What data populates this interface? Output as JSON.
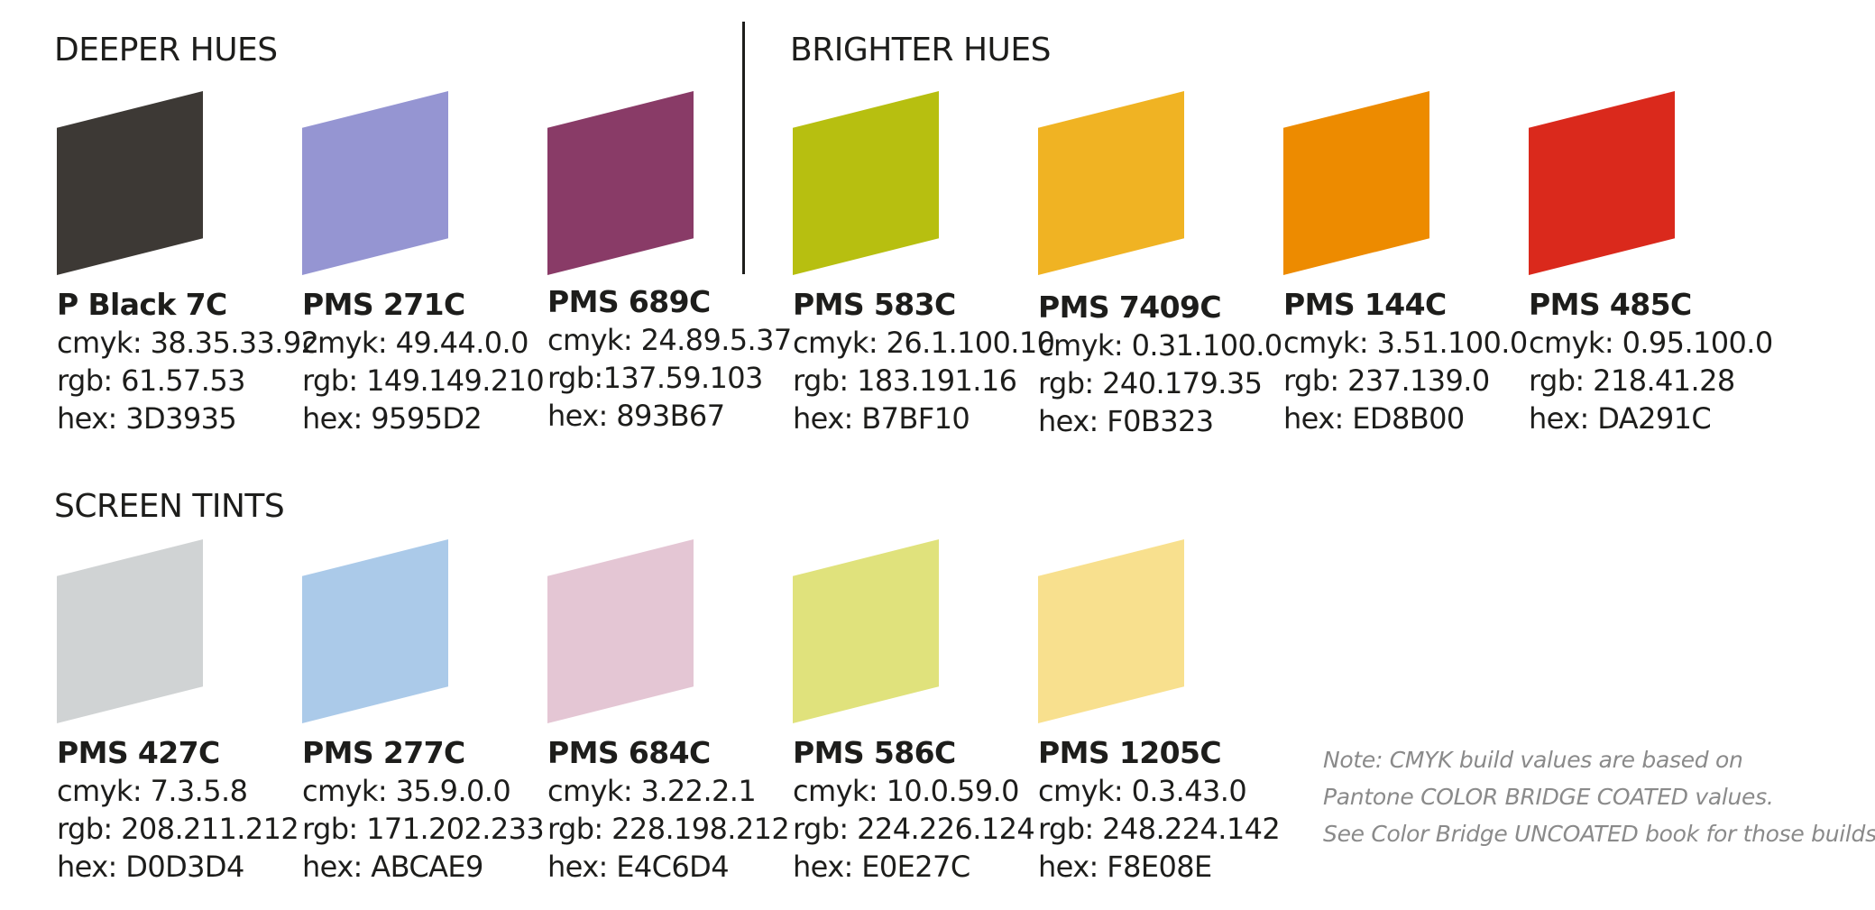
{
  "sections": {
    "deeper": "DEEPER HUES",
    "brighter": "BRIGHTER HUES",
    "tints": "SCREEN TINTS"
  },
  "swatches": [
    {
      "name": "P Black 7C",
      "cmyk": "cmyk: 38.35.33.92",
      "rgb": "rgb: 61.57.53",
      "hex": "hex: 3D3935",
      "color": "#3D3935"
    },
    {
      "name": "PMS 271C",
      "cmyk": "cmyk: 49.44.0.0",
      "rgb": "rgb: 149.149.210",
      "hex": "hex: 9595D2",
      "color": "#9595D2"
    },
    {
      "name": "PMS 689C",
      "cmyk": "cmyk: 24.89.5.37",
      "rgb": "rgb:137.59.103",
      "hex": "hex: 893B67",
      "color": "#893B67"
    },
    {
      "name": "PMS 583C",
      "cmyk": "cmyk: 26.1.100.10",
      "rgb": "rgb: 183.191.16",
      "hex": "hex: B7BF10",
      "color": "#B7BF10"
    },
    {
      "name": "PMS 7409C",
      "cmyk": "cmyk: 0.31.100.0",
      "rgb": "rgb: 240.179.35",
      "hex": "hex: F0B323",
      "color": "#F0B323"
    },
    {
      "name": "PMS 144C",
      "cmyk": "cmyk: 3.51.100.0",
      "rgb": "rgb: 237.139.0",
      "hex": "hex: ED8B00",
      "color": "#ED8B00"
    },
    {
      "name": "PMS 485C",
      "cmyk": "cmyk: 0.95.100.0",
      "rgb": "rgb: 218.41.28",
      "hex": "hex: DA291C",
      "color": "#DA291C"
    },
    {
      "name": "PMS 427C",
      "cmyk": "cmyk: 7.3.5.8",
      "rgb": "rgb: 208.211.212",
      "hex": "hex: D0D3D4",
      "color": "#D0D3D4"
    },
    {
      "name": "PMS 277C",
      "cmyk": "cmyk: 35.9.0.0",
      "rgb": "rgb: 171.202.233",
      "hex": "hex: ABCAE9",
      "color": "#ABCAE9"
    },
    {
      "name": "PMS 684C",
      "cmyk": "cmyk: 3.22.2.1",
      "rgb": "rgb: 228.198.212",
      "hex": "hex: E4C6D4",
      "color": "#E4C6D4"
    },
    {
      "name": "PMS 586C",
      "cmyk": "cmyk: 10.0.59.0",
      "rgb": "rgb: 224.226.124",
      "hex": "hex: E0E27C",
      "color": "#E0E27C"
    },
    {
      "name": "PMS 1205C",
      "cmyk": "cmyk: 0.3.43.0",
      "rgb": "rgb: 248.224.142",
      "hex": "hex: F8E08E",
      "color": "#F8E08E"
    }
  ],
  "note": [
    "Note: CMYK build values are based on",
    "Pantone COLOR BRIDGE COATED values.",
    "See Color Bridge UNCOATED book for those builds."
  ]
}
